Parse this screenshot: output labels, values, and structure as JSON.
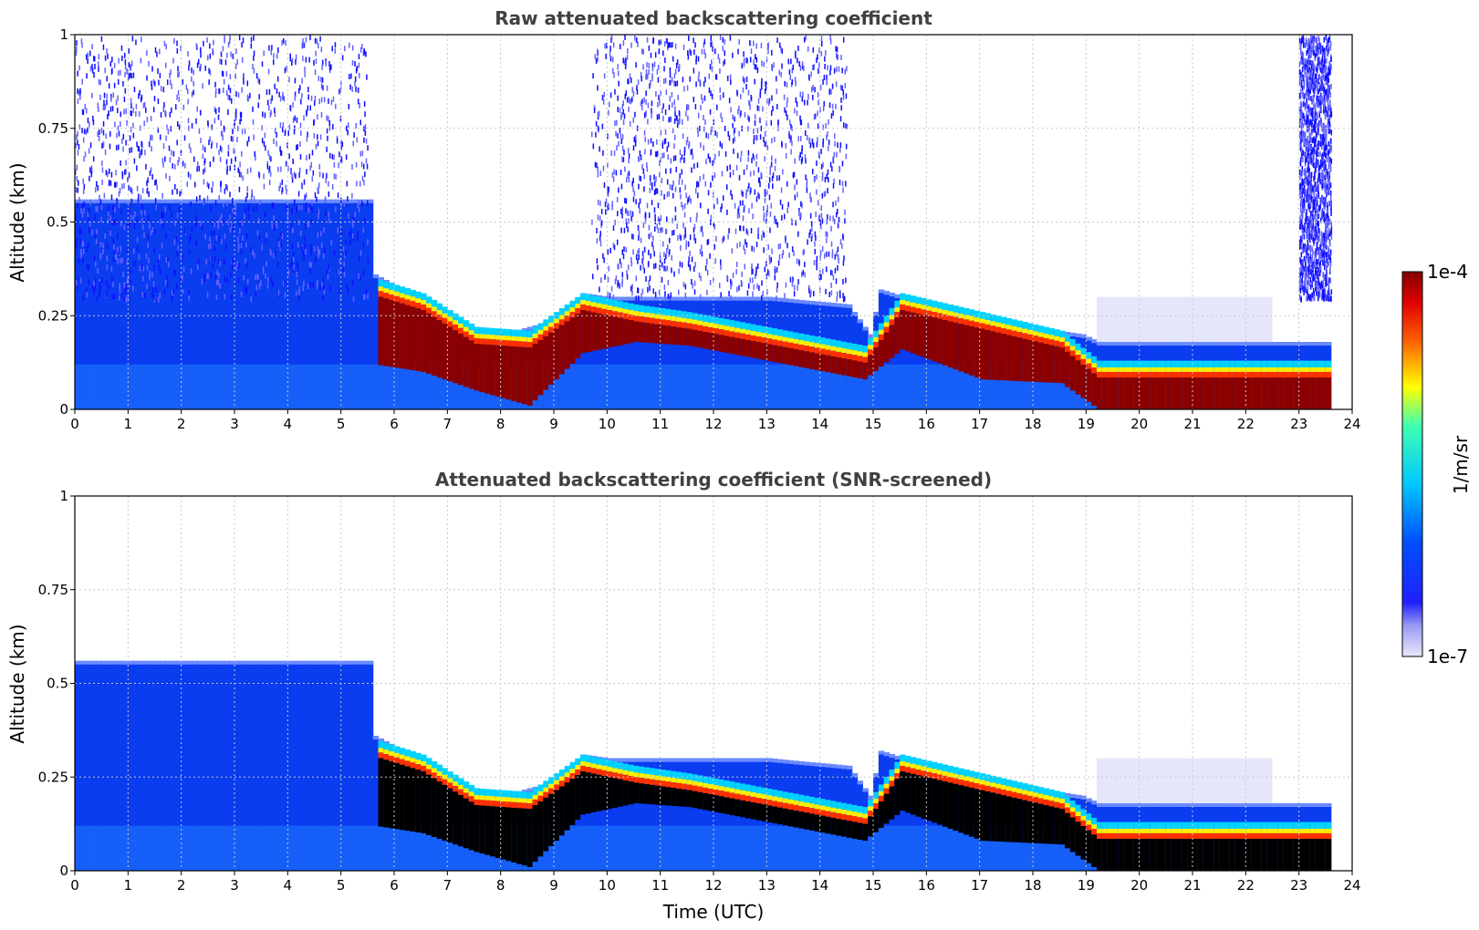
{
  "chart_data": [
    {
      "type": "heatmap",
      "title": "Raw attenuated backscattering coefficient",
      "xlabel": "",
      "ylabel": "Altitude (km)",
      "xlim": [
        0,
        24
      ],
      "ylim": [
        0,
        1
      ],
      "xticks": [
        "0",
        "1",
        "2",
        "3",
        "4",
        "5",
        "6",
        "7",
        "8",
        "9",
        "10",
        "11",
        "12",
        "13",
        "14",
        "15",
        "16",
        "17",
        "18",
        "19",
        "20",
        "21",
        "22",
        "23",
        "24"
      ],
      "yticks": [
        "0",
        "0.25",
        "0.5",
        "0.75",
        "1"
      ],
      "grid": true,
      "data_end_hour": 23.6,
      "boundary_layer_top_km": [
        [
          0,
          0.56
        ],
        [
          5.5,
          0.56
        ],
        [
          5.6,
          0.36
        ],
        [
          6,
          0.33
        ],
        [
          7,
          0.24
        ],
        [
          8,
          0.2
        ],
        [
          9,
          0.24
        ],
        [
          9.5,
          0.31
        ],
        [
          10,
          0.3
        ],
        [
          11,
          0.3
        ],
        [
          12,
          0.3
        ],
        [
          13,
          0.3
        ],
        [
          14.5,
          0.28
        ],
        [
          14.9,
          0.2
        ],
        [
          15.1,
          0.32
        ],
        [
          16,
          0.28
        ],
        [
          17,
          0.25
        ],
        [
          18,
          0.22
        ],
        [
          18.9,
          0.2
        ],
        [
          19.2,
          0.18
        ],
        [
          23.6,
          0.18
        ]
      ],
      "dense_layer_km": [
        [
          5.6,
          0.12,
          0.32
        ],
        [
          6.5,
          0.1,
          0.28
        ],
        [
          7.5,
          0.05,
          0.19
        ],
        [
          8.5,
          0.01,
          0.18
        ],
        [
          9.5,
          0.15,
          0.28
        ],
        [
          10.5,
          0.18,
          0.25
        ],
        [
          11.5,
          0.17,
          0.23
        ],
        [
          14.8,
          0.08,
          0.14
        ],
        [
          15.5,
          0.16,
          0.28
        ],
        [
          17,
          0.08,
          0.23
        ],
        [
          18.5,
          0.07,
          0.18
        ],
        [
          19.2,
          0.0,
          0.1
        ],
        [
          23.6,
          0.0,
          0.1
        ]
      ]
    },
    {
      "type": "heatmap",
      "title": "Attenuated backscattering coefficient (SNR-screened)",
      "xlabel": "Time (UTC)",
      "ylabel": "Altitude (km)",
      "xlim": [
        0,
        24
      ],
      "ylim": [
        0,
        1
      ],
      "xticks": [
        "0",
        "1",
        "2",
        "3",
        "4",
        "5",
        "6",
        "7",
        "8",
        "9",
        "10",
        "11",
        "12",
        "13",
        "14",
        "15",
        "16",
        "17",
        "18",
        "19",
        "20",
        "21",
        "22",
        "23",
        "24"
      ],
      "yticks": [
        "0",
        "0.25",
        "0.5",
        "0.75",
        "1"
      ],
      "grid": true,
      "data_end_hour": 23.6,
      "saturated_color": "#000000"
    }
  ],
  "colorbar": {
    "label": "1/m/sr",
    "max_label": "1e-4",
    "min_label": "1e-7",
    "scale": "log",
    "range": [
      1e-07,
      0.0001
    ],
    "colors": [
      "#e8e8fa",
      "#0000ff",
      "#00c8ff",
      "#ffff00",
      "#ff0000",
      "#800000"
    ]
  }
}
